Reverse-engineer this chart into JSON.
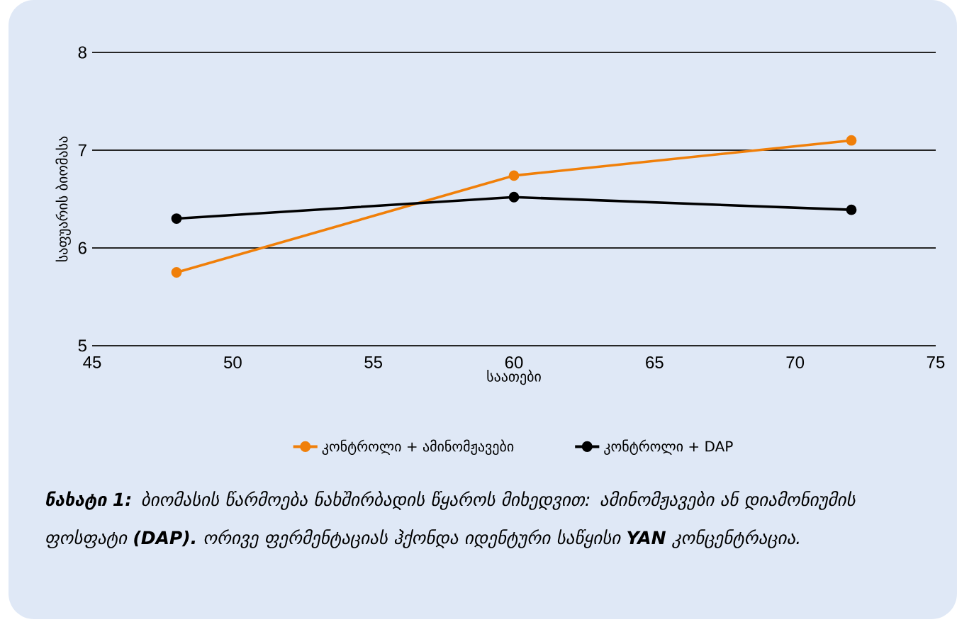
{
  "chart_data": {
    "type": "line",
    "xlabel": "საათები",
    "ylabel": "საფუარის ბიომასა",
    "x": [
      48,
      60,
      72
    ],
    "series": [
      {
        "name": "კონტროლი + ამინომჟავები",
        "color": "#f07f09",
        "values": [
          5.75,
          6.74,
          7.1
        ]
      },
      {
        "name": "კონტროლი + DAP",
        "color": "#000000",
        "values": [
          6.3,
          6.52,
          6.39
        ]
      }
    ],
    "xlim": [
      45,
      75
    ],
    "xticks": [
      45,
      50,
      55,
      60,
      65,
      70,
      75
    ],
    "ylim": [
      5,
      8
    ],
    "yticks": [
      5,
      6,
      7,
      8
    ],
    "grid": "y",
    "legend": "bottom",
    "marker": "circle",
    "line_style": "solid",
    "annotations": [
      "**ნახატი 1:** ბიომასის წარმოება ნახშირბადის წყაროს მიხედვით: ამინომჟავები ან დიამონიუმის ფოსფატი **(DAP).** ორივე ფერმენტაციას ჰქონდა იდენტური საწყისი **YAN** კონცენტრაცია."
    ]
  }
}
